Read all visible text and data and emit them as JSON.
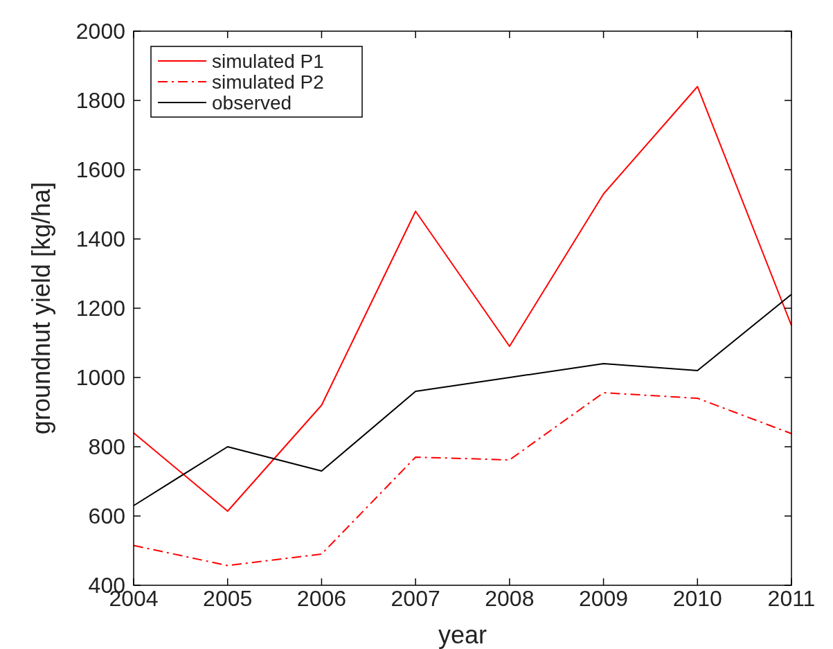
{
  "chart_data": {
    "type": "line",
    "xlabel": "year",
    "ylabel": "groundnut yield [kg/ha]",
    "x": [
      2004,
      2005,
      2006,
      2007,
      2008,
      2009,
      2010,
      2011
    ],
    "series": [
      {
        "name": "simulated P1",
        "color": "#ff0000",
        "line_style": "solid",
        "values": [
          840,
          614,
          920,
          1480,
          1090,
          1530,
          1840,
          1150
        ]
      },
      {
        "name": "simulated P2",
        "color": "#ff0000",
        "line_style": "dashdot",
        "values": [
          515,
          457,
          490,
          770,
          762,
          956,
          940,
          838
        ]
      },
      {
        "name": "observed",
        "color": "#000000",
        "line_style": "solid",
        "values": [
          630,
          800,
          730,
          960,
          1000,
          1040,
          1020,
          1240
        ]
      }
    ],
    "xlim": [
      2004,
      2011
    ],
    "xticks": [
      2004,
      2005,
      2006,
      2007,
      2008,
      2009,
      2010,
      2011
    ],
    "ylim": [
      400,
      2000
    ],
    "yticks": [
      400,
      600,
      800,
      1000,
      1200,
      1400,
      1600,
      1800,
      2000
    ],
    "grid": false,
    "legend": "top left",
    "marker": "none"
  }
}
